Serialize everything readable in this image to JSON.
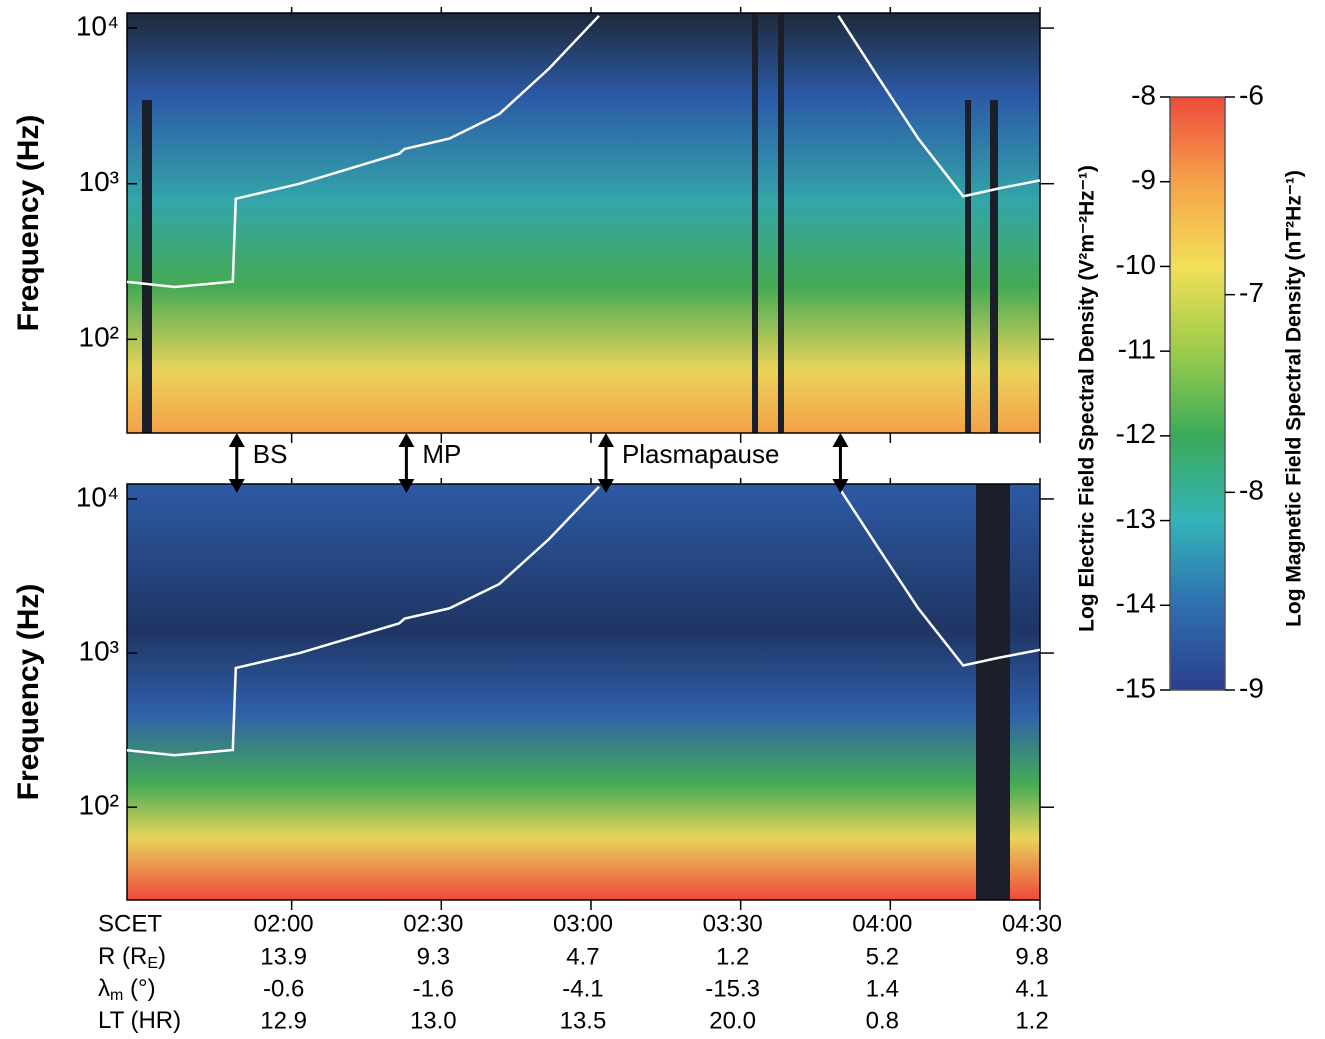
{
  "chart_data": [
    {
      "type": "spectrogram",
      "ylabel": "Frequency (Hz)",
      "log_y": true,
      "ylim": [
        25,
        12500
      ],
      "yticks": [
        {
          "value": 100,
          "label": "10²"
        },
        {
          "value": 1000,
          "label": "10³"
        },
        {
          "value": 10000,
          "label": "10⁴"
        }
      ],
      "xlim": [
        87,
        270
      ],
      "xticks": [
        120,
        150,
        180,
        210,
        240,
        270
      ],
      "series": [
        {
          "color": "#ffffff",
          "x": [
            87,
            96.6,
            108.2,
            108.8,
            121.6,
            141.6,
            142.6,
            151.6,
            161.6,
            171.6,
            181.6,
            null,
            229.6,
            237.6,
            245.6,
            254.6,
            261.6,
            270
          ],
          "values": [
            234,
            217,
            235,
            800,
            1000,
            1560,
            1670,
            1950,
            2800,
            5500,
            12000,
            null,
            12000,
            4800,
            1950,
            830,
            930,
            1050
          ]
        }
      ]
    },
    {
      "type": "spectrogram",
      "ylabel": "Frequency (Hz)",
      "log_y": true,
      "ylim": [
        25,
        12500
      ],
      "yticks": [
        {
          "value": 100,
          "label": "10²"
        },
        {
          "value": 1000,
          "label": "10³"
        },
        {
          "value": 10000,
          "label": "10⁴"
        }
      ],
      "xlim": [
        87,
        270
      ],
      "xticks": [
        {
          "value": 120,
          "label": "02:00"
        },
        {
          "value": 150,
          "label": "02:30"
        },
        {
          "value": 180,
          "label": "03:00"
        },
        {
          "value": 210,
          "label": "03:30"
        },
        {
          "value": 240,
          "label": "04:00"
        },
        {
          "value": 270,
          "label": "04:30"
        }
      ],
      "series": [
        {
          "color": "#ffffff",
          "x": [
            87,
            96.6,
            108.2,
            108.8,
            121.6,
            141.6,
            142.6,
            151.6,
            161.6,
            171.6,
            181.6,
            null,
            229.6,
            237.6,
            245.6,
            254.6,
            261.6,
            270
          ],
          "values": [
            234,
            217,
            235,
            800,
            1000,
            1560,
            1670,
            1950,
            2800,
            5500,
            12000,
            null,
            12000,
            4800,
            1950,
            830,
            930,
            1050
          ]
        }
      ]
    }
  ],
  "events": [
    {
      "label": "BS",
      "x": [
        109
      ]
    },
    {
      "label": "MP",
      "x": [
        143
      ]
    },
    {
      "label": "Plasmapause",
      "x": [
        183,
        230
      ]
    }
  ],
  "ephemeris": {
    "header": "SCET",
    "rows": [
      {
        "label": [
          "R (R",
          "E",
          ")"
        ],
        "values": [
          "13.9",
          "9.3",
          "4.7",
          "1.2",
          "5.2",
          "9.8"
        ]
      },
      {
        "label": [
          "λ",
          "m",
          " (°)"
        ],
        "values": [
          "-0.6",
          "-1.6",
          "-4.1",
          "-15.3",
          "1.4",
          "4.1"
        ]
      },
      {
        "label": [
          "LT (HR)"
        ],
        "values": [
          "12.9",
          "13.0",
          "13.5",
          "20.0",
          "0.8",
          "1.2"
        ]
      }
    ]
  },
  "colorbar": {
    "colors": [
      "#2a3f8f",
      "#2f6fb0",
      "#33b4b8",
      "#3aaa5a",
      "#9ccc4a",
      "#f2df58",
      "#f6a24a",
      "#ee4a3c"
    ],
    "left": {
      "label": "Log Electric Field Spectral Density (V²m⁻²Hz⁻¹)",
      "lim": [
        -15,
        -8
      ],
      "ticks": [
        -8,
        -9,
        -10,
        -11,
        -12,
        -13,
        -14,
        -15
      ]
    },
    "right": {
      "label": "Log Magnetic Field Spectral Density (nT²Hz⁻¹)",
      "lim": [
        -9,
        -6
      ],
      "ticks": [
        -6,
        -7,
        -8,
        -9
      ]
    }
  }
}
